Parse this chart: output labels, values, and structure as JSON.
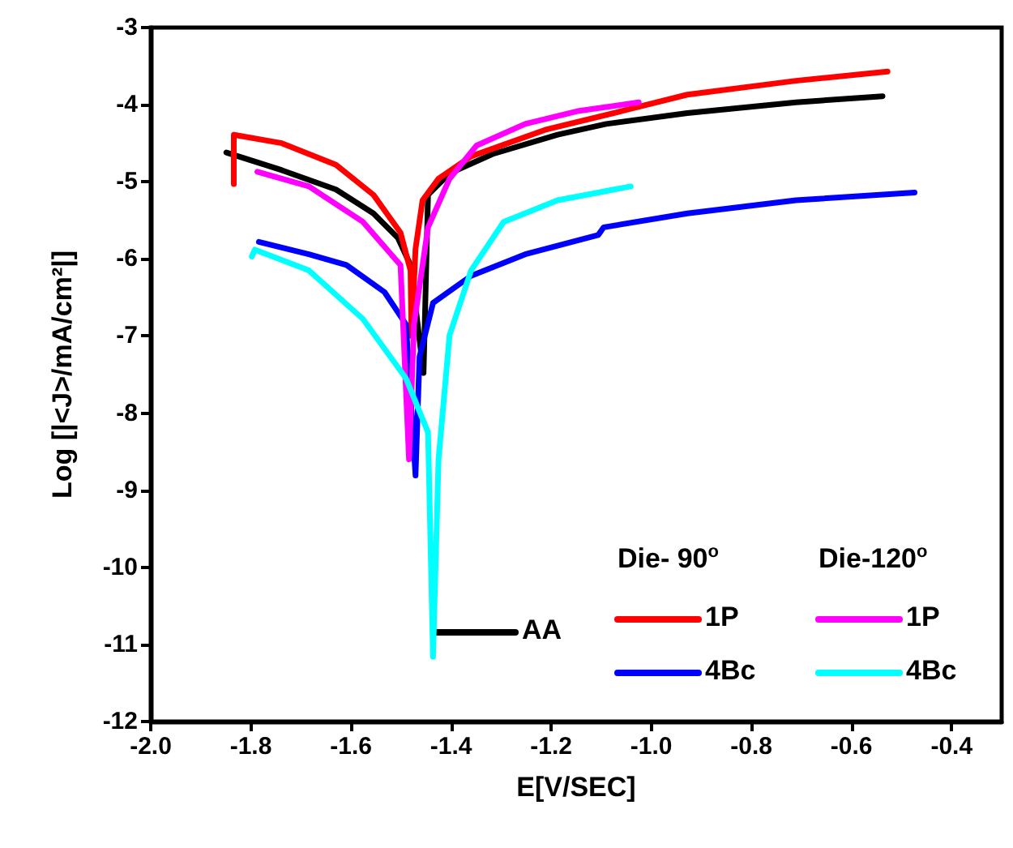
{
  "chart_data": {
    "type": "line",
    "xlabel": "E[V/SEC]",
    "ylabel": "Log [|<J>/mA/cm²|]",
    "annotations": [
      "Die- 90$^{o}$",
      "Die-120$^{o}$"
    ],
    "xlim": [
      -2.0,
      -0.3
    ],
    "xticks": [
      {
        "value": -2.0,
        "label": "-2.0"
      },
      {
        "value": -1.8,
        "label": "-1.8"
      },
      {
        "value": -1.6,
        "label": "-1.6"
      },
      {
        "value": -1.4,
        "label": "-1.4"
      },
      {
        "value": -1.2,
        "label": "-1.2"
      },
      {
        "value": -1.0,
        "label": "-1.0"
      },
      {
        "value": -0.8,
        "label": "-0.8"
      },
      {
        "value": -0.6,
        "label": "-0.6"
      },
      {
        "value": -0.4,
        "label": "-0.4"
      }
    ],
    "ylim": [
      -12,
      -3
    ],
    "yticks": [
      -12,
      -11,
      -10,
      -9,
      -8,
      -7,
      -6,
      -5,
      -4,
      -3
    ],
    "legend": "bottom right",
    "marker": "none",
    "line_style": "solid",
    "series": [
      {
        "name": "AA",
        "color": "#000000",
        "x": [
          -1.849,
          -1.738,
          -1.63,
          -1.555,
          -1.506,
          -1.481,
          -1.455,
          -1.446,
          -1.403,
          -1.317,
          -1.187,
          -1.09,
          -0.928,
          -0.711,
          -0.538
        ],
        "values": [
          -4.62,
          -4.85,
          -5.1,
          -5.41,
          -5.73,
          -6.08,
          -7.48,
          -5.17,
          -4.89,
          -4.64,
          -4.39,
          -4.25,
          -4.11,
          -3.97,
          -3.89
        ]
      },
      {
        "name": "1P",
        "color": "#ff0000",
        "x": [
          -1.834,
          -1.834,
          -1.738,
          -1.63,
          -1.555,
          -1.501,
          -1.481,
          -1.479,
          -1.471,
          -1.457,
          -1.425,
          -1.36,
          -1.209,
          -1.057,
          -0.928,
          -0.711,
          -0.528
        ],
        "values": [
          -5.03,
          -4.39,
          -4.5,
          -4.78,
          -5.17,
          -5.66,
          -6.15,
          -7.0,
          -5.87,
          -5.24,
          -4.96,
          -4.67,
          -4.32,
          -4.08,
          -3.87,
          -3.69,
          -3.57
        ]
      },
      {
        "name": "4Bc",
        "color": "#0000ff",
        "x": [
          -1.784,
          -1.684,
          -1.609,
          -1.533,
          -1.49,
          -1.471,
          -1.463,
          -1.436,
          -1.36,
          -1.252,
          -1.106,
          -1.095,
          -0.928,
          -0.711,
          -0.474
        ],
        "values": [
          -5.78,
          -5.94,
          -6.08,
          -6.43,
          -6.85,
          -8.81,
          -7.27,
          -6.57,
          -6.22,
          -5.94,
          -5.69,
          -5.59,
          -5.41,
          -5.24,
          -5.14
        ]
      },
      {
        "name": "1P",
        "color": "#ff00ff",
        "x": [
          -1.787,
          -1.684,
          -1.576,
          -1.501,
          -1.484,
          -1.474,
          -1.446,
          -1.403,
          -1.349,
          -1.252,
          -1.144,
          -1.025
        ],
        "values": [
          -4.87,
          -5.06,
          -5.52,
          -6.08,
          -8.6,
          -6.85,
          -5.59,
          -4.96,
          -4.53,
          -4.25,
          -4.08,
          -3.97
        ]
      },
      {
        "name": "4Bc",
        "color": "#00ffff",
        "x": [
          -1.798,
          -1.792,
          -1.684,
          -1.576,
          -1.49,
          -1.446,
          -1.436,
          -1.425,
          -1.403,
          -1.36,
          -1.295,
          -1.187,
          -1.041
        ],
        "values": [
          -5.97,
          -5.88,
          -6.15,
          -6.78,
          -7.55,
          -8.25,
          -11.16,
          -8.6,
          -6.99,
          -6.15,
          -5.52,
          -5.24,
          -5.06
        ]
      }
    ]
  }
}
